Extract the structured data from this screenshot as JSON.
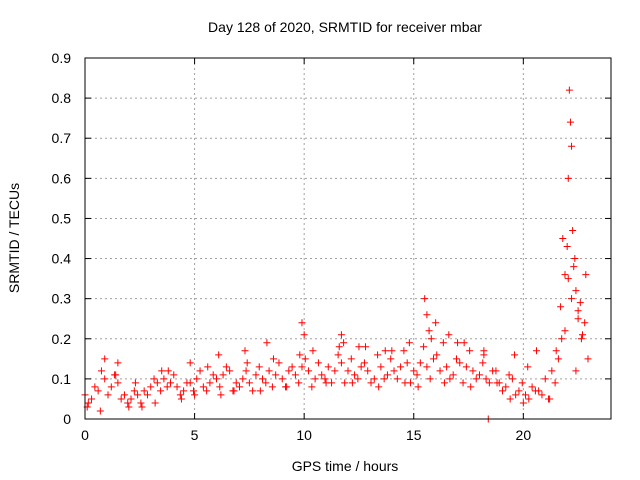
{
  "chart_data": {
    "type": "scatter",
    "title": "Day 128 of 2020, SRMTID for receiver mbar",
    "xlabel": "GPS time / hours",
    "ylabel": "SRMTID / TECUs",
    "xlim": [
      0,
      24
    ],
    "ylim": [
      0,
      0.9
    ],
    "xticks": [
      "0",
      "5",
      "10",
      "15",
      "20"
    ],
    "yticks": [
      "0",
      "0.1",
      "0.2",
      "0.3",
      "0.4",
      "0.5",
      "0.6",
      "0.7",
      "0.8",
      "0.9"
    ],
    "grid": true,
    "marker": "+",
    "colors": {
      "points": "#ff0000",
      "grid": "#a0a0a0"
    },
    "series": [
      {
        "x": [
          0.0,
          0.3,
          0.6,
          0.9,
          1.2,
          1.5,
          1.8,
          2.1,
          2.4,
          2.7,
          3.0,
          3.3,
          3.6,
          3.9,
          4.2,
          4.5,
          4.8,
          5.1,
          5.4,
          5.7,
          6.0,
          6.3,
          6.6,
          6.9,
          7.2,
          7.5,
          7.8,
          8.1,
          8.4,
          8.7,
          9.0,
          9.3,
          9.6,
          9.9,
          10.2,
          10.5,
          10.8,
          11.1,
          11.4,
          11.7,
          12.0,
          12.3,
          12.6,
          12.9,
          13.2,
          13.5,
          13.8,
          14.1,
          14.4,
          14.7,
          15.0,
          15.3,
          15.6,
          15.9,
          16.2,
          16.5,
          16.8,
          17.1,
          17.4,
          17.7,
          18.0,
          18.3,
          18.6,
          18.9,
          19.2,
          19.5,
          19.8,
          20.1,
          20.4,
          20.7,
          21.0,
          21.3,
          21.6,
          21.9,
          22.2,
          22.5,
          22.8,
          0.15,
          0.45,
          0.75,
          1.05,
          1.35,
          1.65,
          1.95,
          2.25,
          2.55,
          2.85,
          3.15,
          3.45,
          3.75,
          4.05,
          4.35,
          4.65,
          4.95,
          5.25,
          5.55,
          5.85,
          6.15,
          6.45,
          6.75,
          7.05,
          7.35,
          7.65,
          7.95,
          8.25,
          8.55,
          8.85,
          9.15,
          9.45,
          9.75,
          10.05,
          10.35,
          10.65,
          10.95,
          11.25,
          11.55,
          11.85,
          12.15,
          12.45,
          12.75,
          13.05,
          13.35,
          13.65,
          13.95,
          14.25,
          14.55,
          14.85,
          15.15,
          15.45,
          15.75,
          16.05,
          16.35,
          16.65,
          16.95,
          17.25,
          17.55,
          17.85,
          18.15,
          18.45,
          18.75,
          19.05,
          19.35,
          19.65,
          19.95,
          20.25,
          20.55,
          20.85,
          21.15,
          21.45,
          21.75,
          22.05,
          22.35,
          22.65,
          22.95,
          0.1,
          0.7,
          1.4,
          2.0,
          2.6,
          3.2,
          3.8,
          4.4,
          5.0,
          5.6,
          6.2,
          6.8,
          7.4,
          8.0,
          8.6,
          9.2,
          9.8,
          10.4,
          11.0,
          11.6,
          12.2,
          12.8,
          13.4,
          14.0,
          14.6,
          15.2,
          15.8,
          16.4,
          17.0,
          17.6,
          18.2,
          18.8,
          19.4,
          20.0,
          20.6,
          21.2,
          21.8,
          22.4,
          0.9,
          1.5,
          2.3,
          3.5,
          4.8,
          6.1,
          7.3,
          8.3,
          9.9,
          10.0,
          11.7,
          11.8,
          12.5,
          13.7,
          14.8,
          15.5,
          15.6,
          15.7,
          16.0,
          16.6,
          17.3,
          18.2,
          19.6,
          20.2,
          21.5,
          21.7,
          21.9,
          22.0,
          22.05,
          22.1,
          22.15,
          22.2,
          22.25,
          22.3,
          22.4,
          22.5,
          22.6,
          22.7,
          22.85,
          18.4
        ],
        "y": [
          0.06,
          0.05,
          0.07,
          0.1,
          0.08,
          0.09,
          0.06,
          0.05,
          0.06,
          0.07,
          0.08,
          0.09,
          0.1,
          0.09,
          0.08,
          0.07,
          0.09,
          0.1,
          0.08,
          0.09,
          0.1,
          0.11,
          0.12,
          0.09,
          0.1,
          0.09,
          0.11,
          0.1,
          0.12,
          0.11,
          0.1,
          0.12,
          0.11,
          0.13,
          0.12,
          0.1,
          0.11,
          0.13,
          0.12,
          0.14,
          0.12,
          0.11,
          0.13,
          0.12,
          0.1,
          0.13,
          0.11,
          0.12,
          0.13,
          0.14,
          0.12,
          0.14,
          0.13,
          0.15,
          0.12,
          0.13,
          0.11,
          0.14,
          0.13,
          0.12,
          0.11,
          0.1,
          0.12,
          0.09,
          0.08,
          0.1,
          0.07,
          0.06,
          0.08,
          0.07,
          0.1,
          0.12,
          0.15,
          0.22,
          0.3,
          0.27,
          0.24,
          0.04,
          0.08,
          0.12,
          0.06,
          0.11,
          0.05,
          0.04,
          0.07,
          0.04,
          0.06,
          0.1,
          0.07,
          0.08,
          0.11,
          0.06,
          0.09,
          0.07,
          0.12,
          0.07,
          0.11,
          0.08,
          0.13,
          0.07,
          0.08,
          0.12,
          0.07,
          0.13,
          0.09,
          0.08,
          0.14,
          0.08,
          0.13,
          0.09,
          0.15,
          0.08,
          0.14,
          0.1,
          0.09,
          0.16,
          0.09,
          0.15,
          0.1,
          0.14,
          0.09,
          0.16,
          0.1,
          0.15,
          0.1,
          0.17,
          0.09,
          0.11,
          0.18,
          0.1,
          0.16,
          0.19,
          0.1,
          0.15,
          0.09,
          0.17,
          0.1,
          0.14,
          0.09,
          0.12,
          0.07,
          0.11,
          0.06,
          0.09,
          0.05,
          0.07,
          0.06,
          0.05,
          0.09,
          0.2,
          0.35,
          0.4,
          0.2,
          0.15,
          0.03,
          0.02,
          0.11,
          0.03,
          0.03,
          0.04,
          0.12,
          0.05,
          0.06,
          0.13,
          0.06,
          0.07,
          0.14,
          0.07,
          0.15,
          0.08,
          0.16,
          0.17,
          0.09,
          0.18,
          0.09,
          0.18,
          0.08,
          0.17,
          0.09,
          0.08,
          0.2,
          0.09,
          0.19,
          0.08,
          0.16,
          0.09,
          0.05,
          0.04,
          0.17,
          0.05,
          0.45,
          0.12,
          0.15,
          0.14,
          0.09,
          0.12,
          0.14,
          0.16,
          0.17,
          0.19,
          0.24,
          0.21,
          0.21,
          0.19,
          0.18,
          0.17,
          0.19,
          0.3,
          0.26,
          0.22,
          0.24,
          0.21,
          0.19,
          0.17,
          0.16,
          0.13,
          0.17,
          0.28,
          0.36,
          0.43,
          0.6,
          0.82,
          0.74,
          0.68,
          0.47,
          0.38,
          0.32,
          0.25,
          0.29,
          0.21,
          0.36,
          0.0
        ]
      }
    ]
  }
}
